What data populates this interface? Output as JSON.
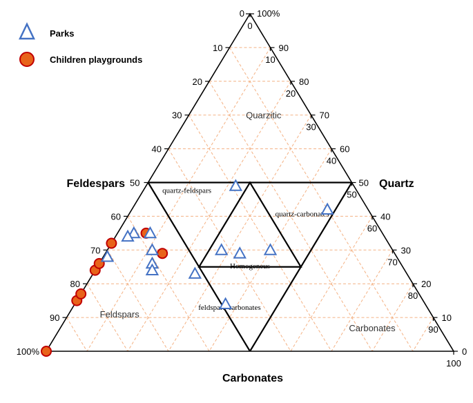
{
  "chart_data": {
    "type": "scatter",
    "chart_kind": "ternary",
    "axes": {
      "bottom": {
        "label": "Carbonates",
        "ticks": [
          "0",
          "10",
          "20",
          "30",
          "40",
          "50",
          "60",
          "70",
          "80",
          "90",
          "100"
        ]
      },
      "left": {
        "label": "Feldespars",
        "ticks": [
          "0",
          "10",
          "20",
          "30",
          "40",
          "50",
          "60",
          "70",
          "80",
          "90",
          "100%"
        ]
      },
      "right": {
        "label": "Quartz",
        "ticks": [
          "100%",
          "90",
          "80",
          "70",
          "60",
          "50",
          "40",
          "30",
          "20",
          "10",
          "0"
        ]
      }
    },
    "grid": true,
    "grid_color": "#f4b183",
    "legend": {
      "placement": "top-left",
      "entries": [
        {
          "name": "Parks",
          "marker": "triangle",
          "color": "#4472c4"
        },
        {
          "name": "Children playgrounds",
          "marker": "circle",
          "color": "#c00000",
          "fill": "#e8631a"
        }
      ]
    },
    "regions": [
      {
        "label": "Quarzitic",
        "style": "light"
      },
      {
        "label": "quartz-feldspars",
        "style": "bold"
      },
      {
        "label": "quartz-carbonates",
        "style": "bold"
      },
      {
        "label": "Homogeneus",
        "style": "bold"
      },
      {
        "label": "feldspars-carbonates",
        "style": "bold"
      },
      {
        "label": "Feldspars",
        "style": "light"
      },
      {
        "label": "Carbonates",
        "style": "light"
      }
    ],
    "series": [
      {
        "name": "Parks",
        "points": [
          {
            "carbonates": 22,
            "feldspars": 29
          },
          {
            "carbonates": 37,
            "feldspars": 49
          },
          {
            "carbonates": 25,
            "feldspars": 52
          },
          {
            "carbonates": 28,
            "feldspars": 42
          },
          {
            "carbonates": 33,
            "feldspars": 38
          },
          {
            "carbonates": 40,
            "feldspars": 30
          },
          {
            "carbonates": 48,
            "feldspars": 10
          },
          {
            "carbonates": 4,
            "feldspars": 61
          },
          {
            "carbonates": 3,
            "feldspars": 63
          },
          {
            "carbonates": 8,
            "feldspars": 57
          },
          {
            "carbonates": 11,
            "feldspars": 59
          },
          {
            "carbonates": 13,
            "feldspars": 61
          },
          {
            "carbonates": 14,
            "feldspars": 62
          },
          {
            "carbonates": 1,
            "feldspars": 71
          }
        ]
      },
      {
        "name": "Children playgrounds",
        "points": [
          {
            "carbonates": 0,
            "feldspars": 100
          },
          {
            "carbonates": 0,
            "feldspars": 85
          },
          {
            "carbonates": 0,
            "feldspars": 83
          },
          {
            "carbonates": 0,
            "feldspars": 76
          },
          {
            "carbonates": 0,
            "feldspars": 74
          },
          {
            "carbonates": 0,
            "feldspars": 68
          },
          {
            "carbonates": 7,
            "feldspars": 58
          },
          {
            "carbonates": 14,
            "feldspars": 57
          }
        ]
      }
    ]
  }
}
